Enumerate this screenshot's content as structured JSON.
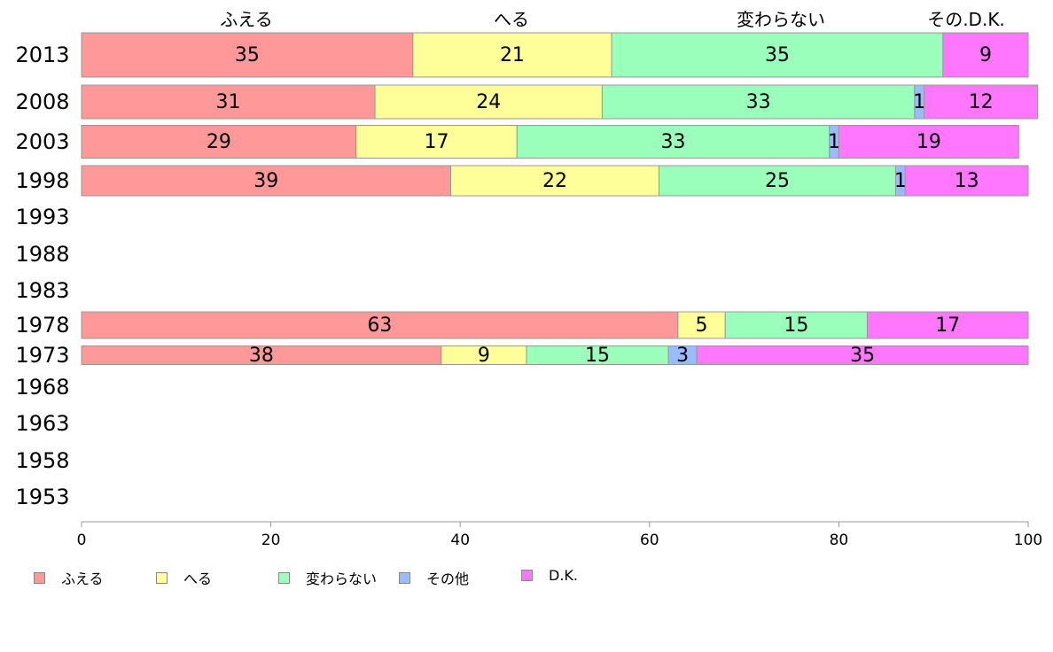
{
  "chart_data": {
    "type": "bar",
    "orientation": "horizontal",
    "stacked": true,
    "categories": [
      "2013",
      "2008",
      "2003",
      "1998",
      "1993",
      "1988",
      "1983",
      "1978",
      "1973",
      "1968",
      "1963",
      "1958",
      "1953"
    ],
    "series": [
      {
        "name": "ふえる",
        "color": "#ff9999",
        "values": [
          35,
          31,
          29,
          39,
          null,
          null,
          null,
          63,
          38,
          null,
          null,
          null,
          null
        ]
      },
      {
        "name": "へる",
        "color": "#ffff99",
        "values": [
          21,
          24,
          17,
          22,
          null,
          null,
          null,
          5,
          9,
          null,
          null,
          null,
          null
        ]
      },
      {
        "name": "変わらない",
        "color": "#99ffbb",
        "values": [
          35,
          33,
          33,
          25,
          null,
          null,
          null,
          15,
          15,
          null,
          null,
          null,
          null
        ]
      },
      {
        "name": "その他",
        "color": "#99bbff",
        "values": [
          0,
          1,
          1,
          1,
          null,
          null,
          null,
          0,
          3,
          null,
          null,
          null,
          null
        ]
      },
      {
        "name": "D.K.",
        "color": "#ff77ff",
        "values": [
          9,
          12,
          19,
          13,
          null,
          null,
          null,
          17,
          35,
          null,
          null,
          null,
          null
        ]
      }
    ],
    "top_labels": [
      "ふえる",
      "へる",
      "変わらない",
      "その.D.K."
    ],
    "xlim": [
      0,
      100
    ],
    "xticks": [
      0,
      20,
      40,
      60,
      80,
      100
    ],
    "legend_position": "bottom"
  }
}
